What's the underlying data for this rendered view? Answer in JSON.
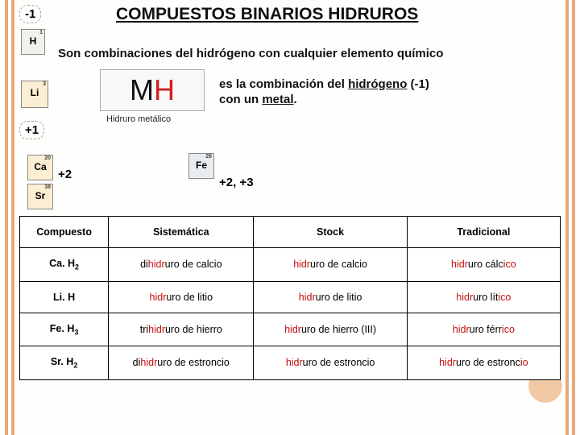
{
  "title": "COMPUESTOS BINARIOS HIDRUROS",
  "subtitle": "Son combinaciones del hidrógeno con cualquier elemento químico",
  "oxidation": {
    "minus1": "-1",
    "plus1": "+1",
    "plus2": "+2",
    "plus23": "+2, +3"
  },
  "elements": {
    "H": {
      "num": "1",
      "sym": "H"
    },
    "Li": {
      "num": "3",
      "sym": "Li"
    },
    "Ca": {
      "num": "20",
      "sym": "Ca"
    },
    "Sr": {
      "num": "38",
      "sym": "Sr"
    },
    "Fe": {
      "num": "26",
      "sym": "Fe"
    }
  },
  "formula": {
    "M": "M",
    "H": "H",
    "caption": "Hidruro   metálico"
  },
  "description": {
    "line1_a": "es la combinación del ",
    "line1_b": "hidrógeno",
    "line1_c": " (-1)",
    "line2_a": " con un ",
    "line2_b": "metal",
    "line2_c": "."
  },
  "table": {
    "headers": {
      "compuesto": "Compuesto",
      "sistematica": "Sistemática",
      "stock": "Stock",
      "tradicional": "Tradicional"
    },
    "rows": [
      {
        "comp_a": "Ca. H",
        "comp_sub": "2",
        "sist_a": "di",
        "sist_b": "hidr",
        "sist_c": "uro de calcio",
        "stock_a": "hidr",
        "stock_b": "uro de calcio",
        "trad_a": "hidr",
        "trad_b": "uro cálc",
        "trad_c": "ico"
      },
      {
        "comp_a": "Li. H",
        "comp_sub": "",
        "sist_a": "",
        "sist_b": "hidr",
        "sist_c": "uro de litio",
        "stock_a": "hidr",
        "stock_b": "uro de litio",
        "trad_a": "hidr",
        "trad_b": "uro lít",
        "trad_c": "ico"
      },
      {
        "comp_a": "Fe. H",
        "comp_sub": "3",
        "sist_a": "tri",
        "sist_b": "hidr",
        "sist_c": "uro de hierro",
        "stock_a": "hidr",
        "stock_b": "uro de hierro (III)",
        "trad_a": "hidr",
        "trad_b": "uro férr",
        "trad_c": "ico"
      },
      {
        "comp_a": "Sr. H",
        "comp_sub": "2",
        "sist_a": "di",
        "sist_b": "hidr",
        "sist_c": "uro de estroncio",
        "stock_a": "hidr",
        "stock_b": "uro de estroncio",
        "trad_a": "hidr",
        "trad_b": "uro de estronc",
        "trad_c": "io"
      }
    ]
  },
  "colors": {
    "accent_stripe": "#e9a77a",
    "highlight_red": "#c01010",
    "background": "#fefefd"
  }
}
